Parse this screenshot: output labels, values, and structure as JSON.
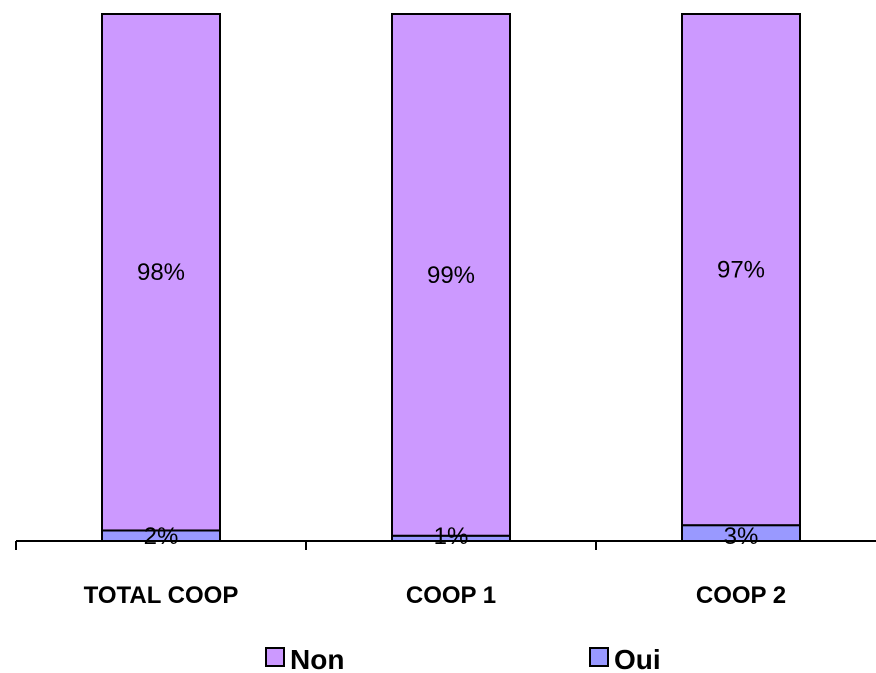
{
  "chart_data": {
    "type": "bar",
    "stacked": true,
    "percent_stacked": true,
    "categories": [
      "TOTAL COOP",
      "COOP 1",
      "COOP 2"
    ],
    "series": [
      {
        "name": "Oui",
        "values": [
          2,
          1,
          3
        ],
        "labels": [
          "2%",
          "1%",
          "3%"
        ],
        "color": "#9999ff"
      },
      {
        "name": "Non",
        "values": [
          98,
          99,
          97
        ],
        "labels": [
          "98%",
          "99%",
          "97%"
        ],
        "color": "#cc99ff"
      }
    ],
    "ylim": [
      0,
      100
    ],
    "grid": false,
    "legend_position": "bottom",
    "legend_order": [
      "Non",
      "Oui"
    ]
  }
}
